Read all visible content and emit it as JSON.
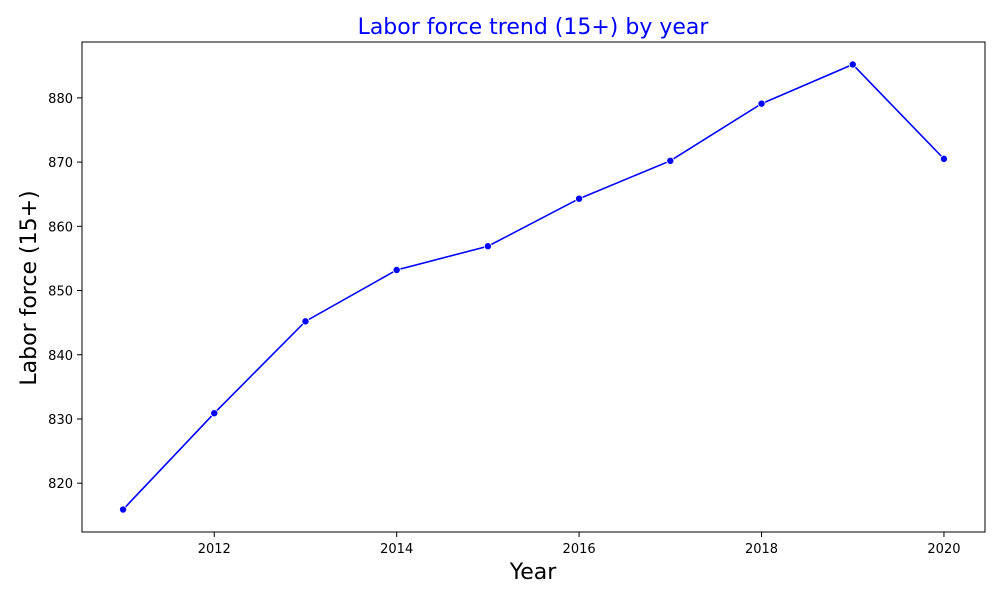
{
  "chart_data": {
    "type": "line",
    "title": "Labor force trend (15+) by year",
    "xlabel": "Year",
    "ylabel": "Labor force (15+)",
    "x": [
      2011,
      2012,
      2013,
      2014,
      2015,
      2016,
      2017,
      2018,
      2019,
      2020
    ],
    "series": [
      {
        "values": [
          815.9,
          830.9,
          845.2,
          853.2,
          856.9,
          864.3,
          870.2,
          879.1,
          885.2,
          870.5
        ],
        "color": "#0000ff"
      }
    ],
    "xlim": [
      2010.55,
      2020.45
    ],
    "ylim": [
      812.4,
      888.7
    ],
    "xticks": [
      2012,
      2014,
      2016,
      2018,
      2020
    ],
    "yticks": [
      820,
      830,
      840,
      850,
      860,
      870,
      880
    ],
    "title_color": "#0000ff",
    "grid": false,
    "marker": "circle"
  }
}
